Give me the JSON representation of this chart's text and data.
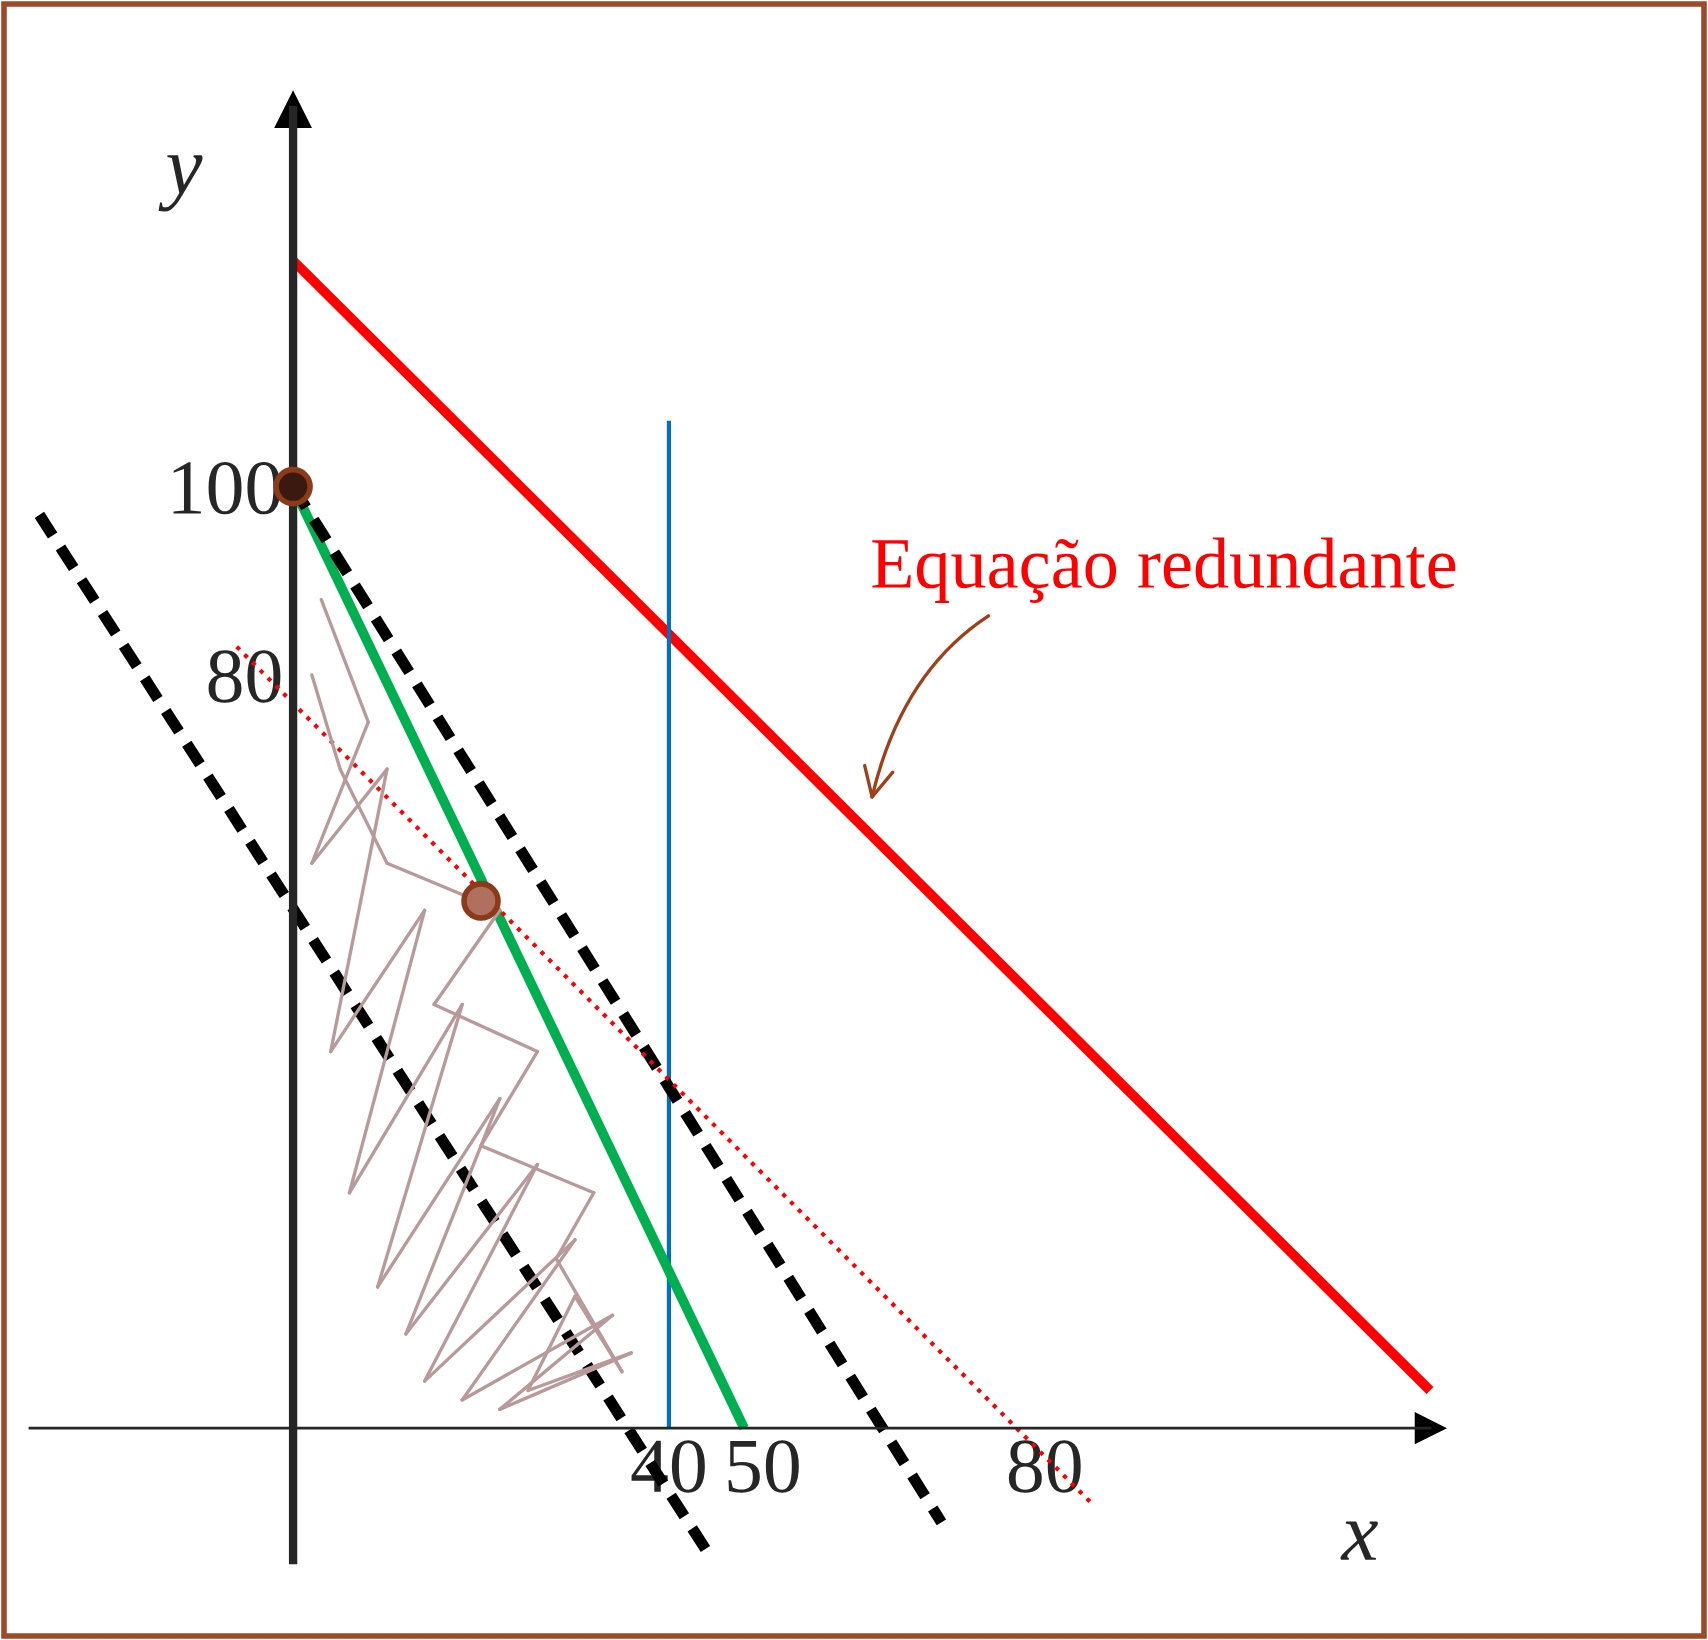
{
  "chart_data": {
    "type": "line",
    "xlabel": "x",
    "ylabel": "y",
    "xlim": [
      -28,
      121
    ],
    "ylim": [
      -14,
      140
    ],
    "xticks": [
      40,
      50,
      80
    ],
    "yticks": [
      80,
      100
    ],
    "grid": false,
    "series": [
      {
        "color": "#ff0000",
        "x": [
          0,
          121
        ],
        "values": [
          124,
          4
        ],
        "line_style": "solid"
      },
      {
        "color": "#0070c0",
        "x": [
          40,
          40
        ],
        "values": [
          107,
          0
        ],
        "line_style": "solid"
      },
      {
        "color": "#00b050",
        "x": [
          0,
          48
        ],
        "values": [
          100,
          0
        ],
        "line_style": "solid"
      },
      {
        "color": "#000000",
        "x": [
          0,
          69
        ],
        "values": [
          100,
          -10
        ],
        "line_style": "dashed"
      },
      {
        "color": "#000000",
        "x": [
          -27,
          44
        ],
        "values": [
          97,
          -13
        ],
        "line_style": "dashed"
      },
      {
        "color": "#ff0000",
        "x": [
          -6,
          85
        ],
        "values": [
          83,
          -8
        ],
        "line_style": "dotted"
      },
      {
        "type": "scatter",
        "colors": [
          "#3a1a10",
          "#b07060"
        ],
        "x": [
          0,
          20
        ],
        "values": [
          100,
          56
        ],
        "marker": "circle"
      }
    ],
    "annotations": [
      "Equação redundante"
    ]
  }
}
